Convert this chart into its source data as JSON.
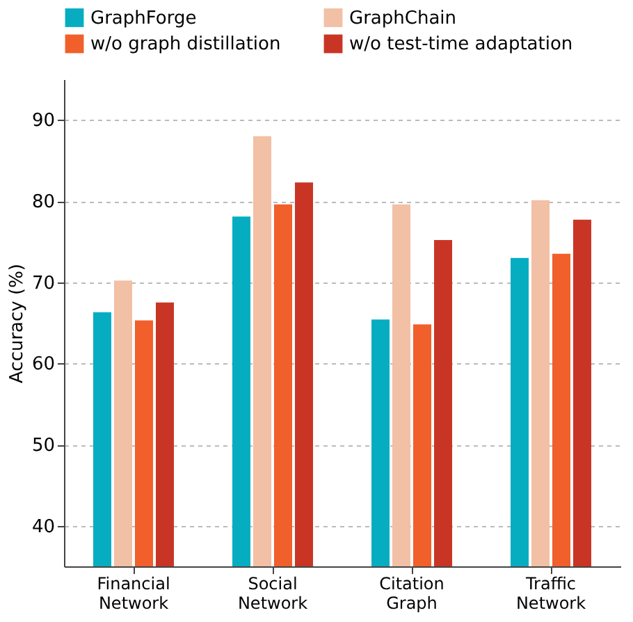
{
  "chart_data": {
    "type": "bar",
    "ylabel": "Accuracy (%)",
    "categories": [
      "Financial Network",
      "Social Network",
      "Citation Graph",
      "Traffic Network"
    ],
    "series": [
      {
        "name": "GraphForge",
        "color": "#06adc1",
        "values": [
          66.3,
          78.1,
          65.4,
          73.0
        ]
      },
      {
        "name": "GraphChain",
        "color": "#f1c0a5",
        "values": [
          70.2,
          88.0,
          79.6,
          80.1
        ]
      },
      {
        "name": "w/o graph distillation",
        "color": "#f15f2b",
        "values": [
          65.3,
          79.6,
          64.8,
          73.5
        ]
      },
      {
        "name": "w/o test-time adaptation",
        "color": "#c93525",
        "values": [
          67.5,
          82.3,
          75.2,
          77.7
        ]
      }
    ],
    "ylim": [
      35,
      95
    ],
    "yticks": [
      40,
      50,
      60,
      70,
      80,
      90
    ],
    "grid": "y",
    "legend": "top"
  }
}
